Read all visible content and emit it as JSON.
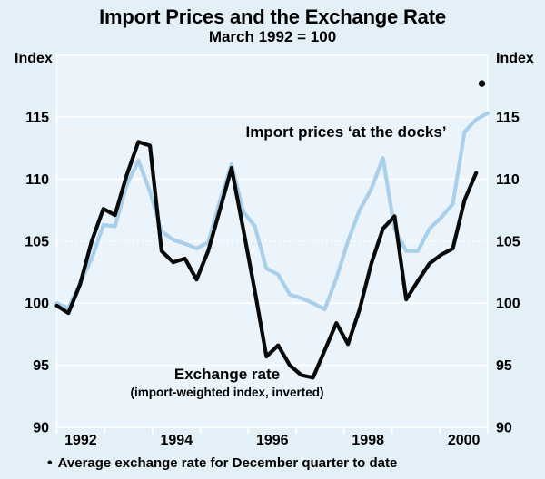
{
  "page": {
    "title": "Import Prices and the Exchange Rate",
    "subtitle": "March 1992 = 100",
    "left_axis_title": "Index",
    "right_axis_title": "Index",
    "footnote_bullet": "•",
    "footnote": "Average exchange rate for December quarter to date"
  },
  "labels": {
    "import_prices": "Import prices ‘at the docks’",
    "exchange_rate": "Exchange rate",
    "exchange_rate_sub": "(import-weighted index, inverted)"
  },
  "colors": {
    "background": "#e4f0f7",
    "panel": "#eaf4fa",
    "gridline": "#ffffff",
    "import_prices_line": "#a9cfea",
    "exchange_rate_line": "#0a0a0a",
    "text": "#000000"
  },
  "chart_data": {
    "type": "line",
    "title": "Import Prices and the Exchange Rate",
    "subtitle": "March 1992 = 100",
    "ylabel_left": "Index",
    "ylabel_right": "Index",
    "ylim": [
      90,
      120
    ],
    "yticks": [
      90,
      95,
      100,
      105,
      110,
      115
    ],
    "dotted_gridline_value": 105,
    "grid": true,
    "legend_position": "inline-annotations",
    "xtick_labels": [
      "1992",
      "1994",
      "1996",
      "1998",
      "2000"
    ],
    "quarters": [
      "1991Q3",
      "1991Q4",
      "1992Q1",
      "1992Q2",
      "1992Q3",
      "1992Q4",
      "1993Q1",
      "1993Q2",
      "1993Q3",
      "1993Q4",
      "1994Q1",
      "1994Q2",
      "1994Q3",
      "1994Q4",
      "1995Q1",
      "1995Q2",
      "1995Q3",
      "1995Q4",
      "1996Q1",
      "1996Q2",
      "1996Q3",
      "1996Q4",
      "1997Q1",
      "1997Q2",
      "1997Q3",
      "1997Q4",
      "1998Q1",
      "1998Q2",
      "1998Q3",
      "1998Q4",
      "1999Q1",
      "1999Q2",
      "1999Q3",
      "1999Q4",
      "2000Q1",
      "2000Q2",
      "2000Q3",
      "2000Q4"
    ],
    "series": [
      {
        "name": "Import prices ‘at the docks’",
        "color": "#a9cfea",
        "values": [
          100.0,
          99.6,
          101.6,
          103.6,
          106.3,
          106.2,
          109.5,
          111.5,
          109.0,
          105.8,
          105.1,
          104.8,
          104.4,
          104.9,
          108.2,
          111.2,
          107.4,
          106.2,
          102.8,
          102.3,
          100.7,
          100.4,
          100.0,
          99.5,
          102.0,
          105.0,
          107.5,
          109.2,
          111.7,
          106.0,
          104.2,
          104.2,
          106.0,
          106.9,
          108.0,
          113.8,
          114.8,
          115.3
        ]
      },
      {
        "name": "Exchange rate (import-weighted index, inverted)",
        "color": "#0a0a0a",
        "values": [
          99.8,
          99.2,
          101.5,
          105.0,
          107.6,
          107.1,
          110.3,
          113.0,
          112.7,
          104.2,
          103.3,
          103.6,
          101.9,
          104.2,
          107.5,
          110.9,
          106.0,
          101.0,
          95.7,
          96.6,
          95.0,
          94.2,
          94.0,
          96.2,
          98.4,
          96.7,
          99.5,
          103.2,
          106.0,
          107.0,
          100.3,
          101.8,
          103.2,
          103.9,
          104.4,
          108.3,
          110.5,
          null
        ]
      }
    ],
    "point_annotation": {
      "label": "Average exchange rate for December quarter to date",
      "quarter": "2000Q4",
      "value": 117.7,
      "color": "#0a0a0a"
    }
  }
}
